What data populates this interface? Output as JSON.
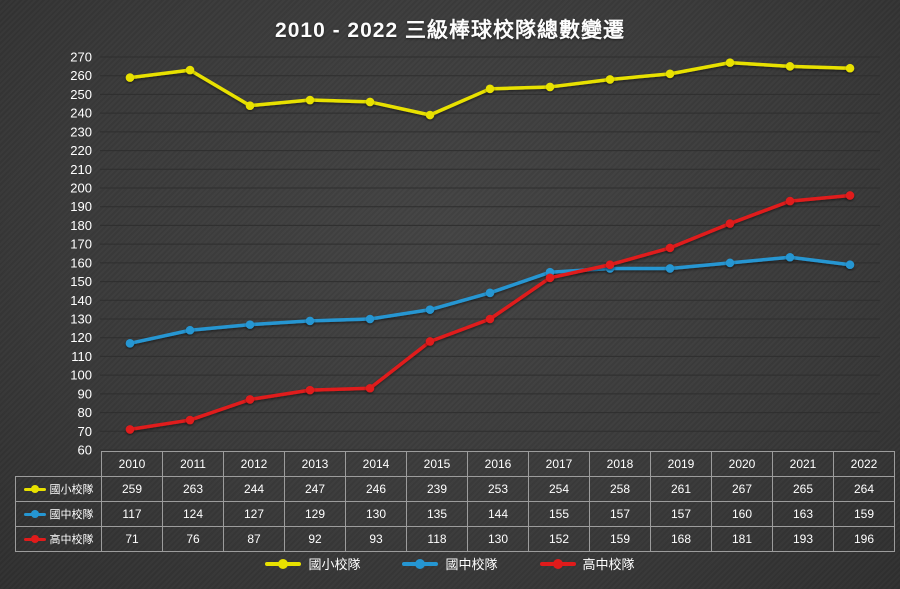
{
  "title": "2010 - 2022 三級棒球校隊總數變遷",
  "theme": {
    "background": "#3a3a3a",
    "text": "#ffffff",
    "grid": "#2e2e2e",
    "table_border": "#9c9c9c"
  },
  "chart_data": {
    "type": "line",
    "title": "2010 - 2022 三級棒球校隊總數變遷",
    "categories": [
      "2010",
      "2011",
      "2012",
      "2013",
      "2014",
      "2015",
      "2016",
      "2017",
      "2018",
      "2019",
      "2020",
      "2021",
      "2022"
    ],
    "series": [
      {
        "id": "elementary-school-teams",
        "name": "國小校隊",
        "color": "#e8e100",
        "values": [
          259,
          263,
          244,
          247,
          246,
          239,
          253,
          254,
          258,
          261,
          267,
          265,
          264
        ]
      },
      {
        "id": "junior-high-teams",
        "name": "國中校隊",
        "color": "#2596d2",
        "values": [
          117,
          124,
          127,
          129,
          130,
          135,
          144,
          155,
          157,
          157,
          160,
          163,
          159
        ]
      },
      {
        "id": "senior-high-teams",
        "name": "高中校隊",
        "color": "#e01b1b",
        "values": [
          71,
          76,
          87,
          92,
          93,
          118,
          130,
          152,
          159,
          168,
          181,
          193,
          196
        ]
      }
    ],
    "ylim": [
      60,
      270
    ],
    "ytick_step": 10,
    "grid": true,
    "legend_position": "bottom",
    "xlabel": "",
    "ylabel": ""
  }
}
